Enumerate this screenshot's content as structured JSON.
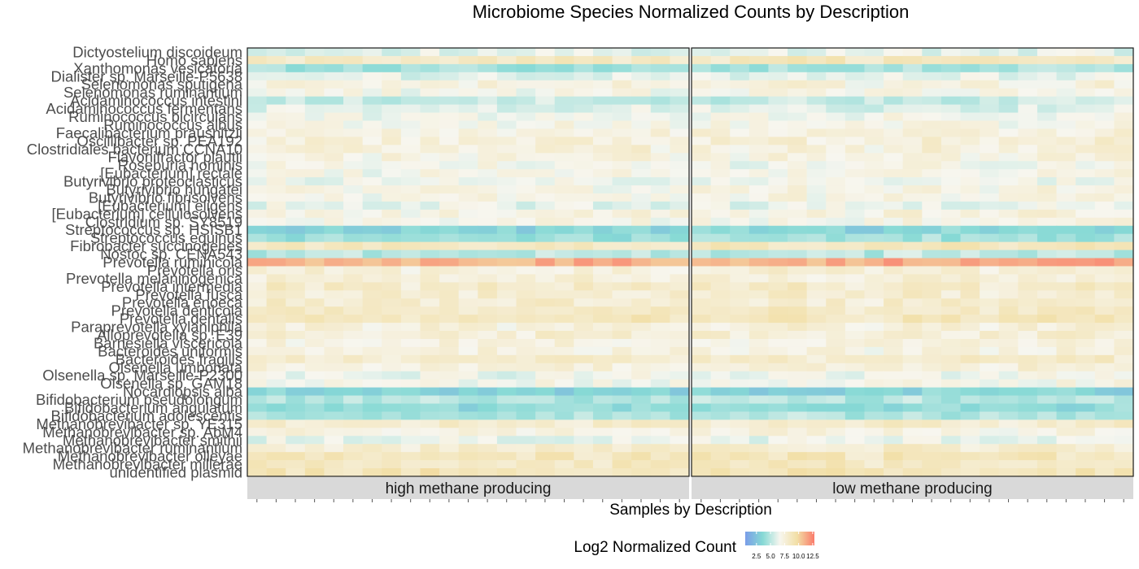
{
  "chart_data": {
    "type": "heatmap",
    "title": "Microbiome Species Normalized Counts by Description",
    "xlabel": "Samples by Description",
    "ylabel": "",
    "species": [
      "Dictyostelium discoideum",
      "Homo sapiens",
      "Xanthomonas vesicatoria",
      "Dialister sp. Marseille-P5638",
      "Selenomonas sputigena",
      "Selenomonas ruminantium",
      "Acidaminococcus intestini",
      "Acidaminococcus fermentans",
      "Ruminococcus bicirculans",
      "Ruminococcus albus",
      "Faecalibacterium prausnitzii",
      "Oscillibacter sp. PEA192",
      "Clostridiales bacterium CCNA10",
      "Flavonifractor plautii",
      "Roseburia hominis",
      "[Eubacterium] rectale",
      "Butyrivibrio proteoclasticus",
      "Butyrivibrio hungatei",
      "Butyrivibrio fibrisolvens",
      "[Eubacterium] eligens",
      "[Eubacterium] cellulosolvens",
      "Clostridium sp. SY8519",
      "Streptococcus sp. HSISB1",
      "Streptococcus equinus",
      "Fibrobacter succinogenes",
      "Nostoc sp. CENA543",
      "Prevotella ruminicola",
      "Prevotella oris",
      "Prevotella melaninogenica",
      "Prevotella intermedia",
      "Prevotella fusca",
      "Prevotella enoeca",
      "Prevotella denticola",
      "Prevotella dentalis",
      "Paraprevotella xylaniphila",
      "Alloprevotella sp. E39",
      "Barnesiella viscericola",
      "Bacteroides uniformis",
      "Bacteroides fragilis",
      "Olsenella umbonata",
      "Olsenella sp. Marseille-P2300",
      "Olsenella sp. GAM18",
      "Nocardiopsis alba",
      "Bifidobacterium pseudolongum",
      "Bifidobacterium angulatum",
      "Bifidobacterium adolescentis",
      "Methanobrevibacter sp. YE315",
      "Methanobrevibacter sp. AbM4",
      "Methanobrevibacter smithii",
      "Methanobrevibacter ruminantium",
      "Methanobrevibacter olleyae",
      "Methanobrevibacter millerae",
      "unidentified plasmid"
    ],
    "groups": [
      {
        "name": "high methane producing",
        "n_samples": 23
      },
      {
        "name": "low methane producing",
        "n_samples": 23
      }
    ],
    "species_base": [
      6.0,
      8.5,
      4.5,
      6.2,
      7.2,
      6.9,
      5.3,
      6.0,
      6.6,
      6.9,
      7.3,
      7.5,
      7.4,
      7.2,
      6.7,
      6.9,
      6.5,
      7.0,
      6.9,
      6.3,
      7.2,
      7.0,
      3.5,
      4.2,
      8.6,
      5.0,
      11.2,
      7.5,
      7.6,
      8.1,
      7.8,
      7.9,
      8.3,
      8.6,
      7.4,
      7.7,
      7.3,
      7.2,
      8.0,
      7.5,
      6.5,
      6.8,
      3.3,
      4.8,
      3.8,
      4.8,
      8.0,
      7.2,
      6.3,
      7.9,
      8.6,
      8.5,
      8.9
    ],
    "color_scale": {
      "min": 0.5,
      "max": 12.8,
      "colors": [
        "#7a9de8",
        "#86d9d5",
        "#f7f6ef",
        "#f2dfa6",
        "#fa7a6a"
      ],
      "breaks": [
        2.5,
        5.0,
        7.5,
        10.0,
        12.5
      ],
      "break_labels": [
        "2.5",
        "5.0",
        "7.5",
        "10.0",
        "12.5"
      ]
    },
    "legend": {
      "title": "Log2 Normalized Count",
      "placement": "bottom"
    },
    "grid": false
  }
}
